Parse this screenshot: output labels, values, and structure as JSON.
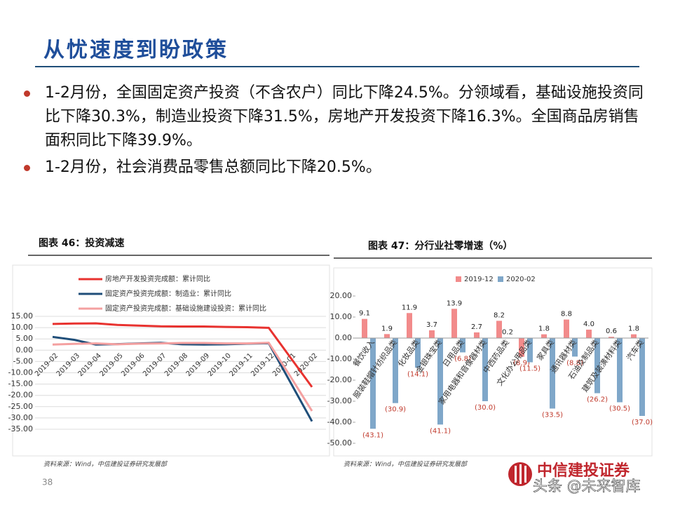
{
  "slide": {
    "title": "从忧速度到盼政策",
    "bullets": [
      "1-2月份，全国固定资产投资（不含农户）同比下降24.5%。分领域看，基础设施投资同比下降30.3%，制造业投资下降31.5%，房地产开发投资下降16.3%。全国商品房销售面积同比下降39.9%。",
      "1-2月份，社会消费品零售总额同比下降20.5%。"
    ],
    "page_number": "38",
    "logo": "中信建投证券",
    "watermark": "头条 @未来智库"
  },
  "chart_data": [
    {
      "type": "line",
      "title": "图表 46：投资减速",
      "source": "资料来源：Wind，中信建投证券研究发展部",
      "categories": [
        "2019-02",
        "2019-03",
        "2019-04",
        "2019-05",
        "2019-06",
        "2019-07",
        "2019-08",
        "2019-09",
        "2019-10",
        "2019-11",
        "2019-12",
        "2020-01",
        "2020-02"
      ],
      "series": [
        {
          "name": "房地产开发投资完成额：累计同比",
          "color": "#e8322f",
          "values": [
            11.6,
            11.8,
            11.9,
            11.2,
            10.9,
            10.6,
            10.5,
            10.5,
            10.3,
            10.2,
            9.9,
            -3.2,
            -16.3
          ]
        },
        {
          "name": "固定资产投资完成额：制造业：累计同比",
          "color": "#1f4e79",
          "values": [
            5.9,
            4.6,
            2.5,
            2.7,
            3.0,
            3.3,
            2.6,
            2.5,
            2.6,
            2.9,
            3.1,
            -14.2,
            -31.5
          ]
        },
        {
          "name": "固定资产投资完成额：基础设施建设投资：累计同比",
          "color": "#f4a0a0",
          "values": [
            2.5,
            2.8,
            3.0,
            2.6,
            2.9,
            3.0,
            3.2,
            3.2,
            3.0,
            3.0,
            3.3,
            -11.6,
            -26.9
          ]
        }
      ],
      "ylim": [
        -35,
        15
      ],
      "yticks": [
        {
          "value": 15,
          "label": "15.00"
        },
        {
          "value": 10,
          "label": "10.00"
        },
        {
          "value": 5,
          "label": "5.00"
        },
        {
          "value": 0,
          "label": "0.00"
        },
        {
          "value": -5,
          "label": "-5.00"
        },
        {
          "value": -10,
          "label": "-10.00"
        },
        {
          "value": -15,
          "label": "-15.00"
        },
        {
          "value": -20,
          "label": "-20.00"
        },
        {
          "value": -25,
          "label": "-25.00"
        },
        {
          "value": -30,
          "label": "-30.00"
        },
        {
          "value": -35,
          "label": "-35.00"
        }
      ],
      "grid": true,
      "legend": "top"
    },
    {
      "type": "bar",
      "title": "图表 47：分行业社零增速（%）",
      "source": "资料来源：Wind，中信建投证券研究发展部",
      "categories": [
        "餐饮收入",
        "服装鞋帽针纺织品类",
        "化妆品类",
        "金银珠宝类",
        "日用品类",
        "家用电器和音像器材类",
        "中西药品类",
        "文化办公用品类",
        "家具类",
        "通讯器材类",
        "石油及制品类",
        "建筑及装潢材料类",
        "汽车类"
      ],
      "series": [
        {
          "name": "2019-12",
          "color": "#f28b8b",
          "values": [
            9.1,
            1.9,
            11.9,
            3.7,
            13.9,
            2.7,
            8.2,
            -8.9,
            1.8,
            8.8,
            4.0,
            0.6,
            1.8
          ],
          "value_labels": [
            "9.1",
            "1.9",
            "11.9",
            "3.7",
            "13.9",
            "2.7",
            "8.2",
            "(8.9)",
            "1.8",
            "8.8",
            "4.0",
            "0.6",
            "1.8"
          ]
        },
        {
          "name": "2020-02",
          "color": "#7fa7c9",
          "values": [
            -43.1,
            -30.9,
            -14.1,
            -41.1,
            -6.8,
            -30.0,
            0.2,
            -11.5,
            -33.5,
            -8.8,
            -26.2,
            -30.5,
            -37.0
          ],
          "value_labels": [
            "(43.1)",
            "(30.9)",
            "(14.1)",
            "(41.1)",
            "(6.8)",
            "(30.0)",
            "0.2",
            "(11.5)",
            "(33.5)",
            "(8.8)",
            "(26.2)",
            "(30.5)",
            "(37.0)"
          ]
        }
      ],
      "ylim": [
        -50,
        20
      ],
      "yticks": [
        {
          "value": 20,
          "label": "20.00"
        },
        {
          "value": 10,
          "label": "10.00"
        },
        {
          "value": 0,
          "label": "0.00"
        },
        {
          "value": -10,
          "label": "-10.00"
        },
        {
          "value": -20,
          "label": "-20.00"
        },
        {
          "value": -30,
          "label": "-30.00"
        },
        {
          "value": -40,
          "label": "-40.00"
        },
        {
          "value": -50,
          "label": "-50.00"
        }
      ],
      "grid": false,
      "legend": "top"
    }
  ]
}
